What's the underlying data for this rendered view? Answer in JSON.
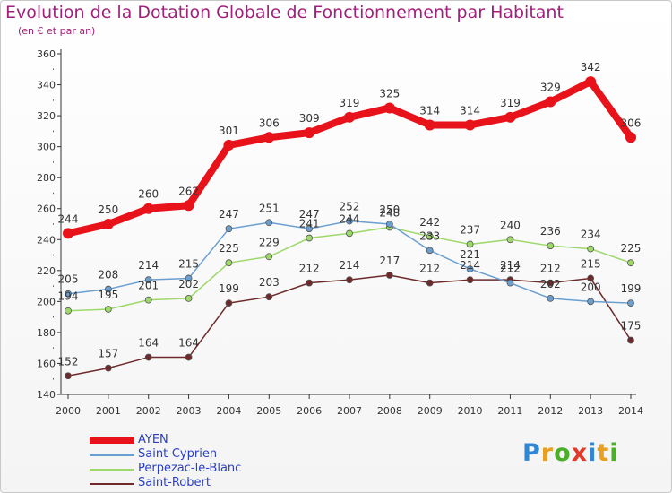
{
  "title": "Evolution de la Dotation Globale de Fonctionnement par Habitant",
  "subtitle": "(en € et par an)",
  "logo": {
    "letters": [
      "P",
      "r",
      "o",
      "x",
      "i",
      "t",
      "i"
    ],
    "colors": [
      "#2e86d6",
      "#e8a020",
      "#4caf2a",
      "#e03a2a",
      "#2e86d6",
      "#e8a020",
      "#4caf2a"
    ]
  },
  "chart_data": {
    "type": "line",
    "title": "Evolution de la Dotation Globale de Fonctionnement par Habitant",
    "subtitle": "(en € et par an)",
    "xlabel": "",
    "ylabel": "",
    "ylim": [
      140,
      360
    ],
    "yticks": [
      140,
      160,
      180,
      200,
      220,
      240,
      260,
      280,
      300,
      320,
      340,
      360
    ],
    "categories": [
      "2000",
      "2001",
      "2002",
      "2003",
      "2004",
      "2005",
      "2006",
      "2007",
      "2008",
      "2009",
      "2010",
      "2011",
      "2012",
      "2013",
      "2014"
    ],
    "series": [
      {
        "name": "AYEN",
        "color": "#e8121a",
        "values": [
          244,
          250,
          260,
          262,
          301,
          306,
          309,
          319,
          325,
          314,
          314,
          319,
          329,
          342,
          306
        ]
      },
      {
        "name": "Saint-Cyprien",
        "color": "#6a9fd0",
        "values": [
          205,
          208,
          214,
          215,
          247,
          251,
          247,
          252,
          250,
          233,
          221,
          212,
          202,
          200,
          199
        ]
      },
      {
        "name": "Perpezac-le-Blanc",
        "color": "#9ed86a",
        "values": [
          194,
          195,
          201,
          202,
          225,
          229,
          241,
          244,
          248,
          242,
          237,
          240,
          236,
          234,
          225
        ]
      },
      {
        "name": "Saint-Robert",
        "color": "#6e2a2a",
        "values": [
          152,
          157,
          164,
          164,
          199,
          203,
          212,
          214,
          217,
          212,
          214,
          214,
          212,
          215,
          175
        ]
      }
    ],
    "grid": false,
    "legend": "bottom-left"
  }
}
